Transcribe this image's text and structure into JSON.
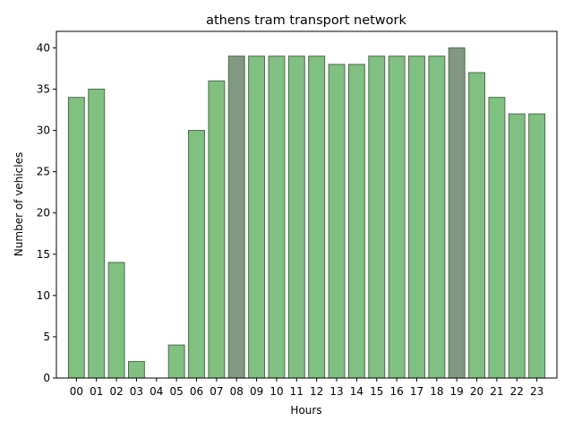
{
  "chart_data": {
    "type": "bar",
    "title": "athens tram transport network",
    "xlabel": "Hours",
    "ylabel": "Number of vehicles",
    "categories": [
      "00",
      "01",
      "02",
      "03",
      "04",
      "05",
      "06",
      "07",
      "08",
      "09",
      "10",
      "11",
      "12",
      "13",
      "14",
      "15",
      "16",
      "17",
      "18",
      "19",
      "20",
      "21",
      "22",
      "23"
    ],
    "values": [
      34,
      35,
      14,
      2,
      0,
      4,
      30,
      36,
      39,
      39,
      39,
      39,
      39,
      38,
      38,
      39,
      39,
      39,
      39,
      40,
      37,
      34,
      32,
      32
    ],
    "highlighted_categories": [
      "08",
      "19"
    ],
    "ylim": [
      0,
      42
    ],
    "yticks": [
      0,
      5,
      10,
      15,
      20,
      25,
      30,
      35,
      40
    ],
    "grid": false,
    "legend": "none",
    "colors": {
      "bar": "#80c080",
      "bar_highlight": "#809980",
      "bar_edge": "#4d6b4d",
      "axis": "#000000",
      "background": "#ffffff"
    }
  }
}
